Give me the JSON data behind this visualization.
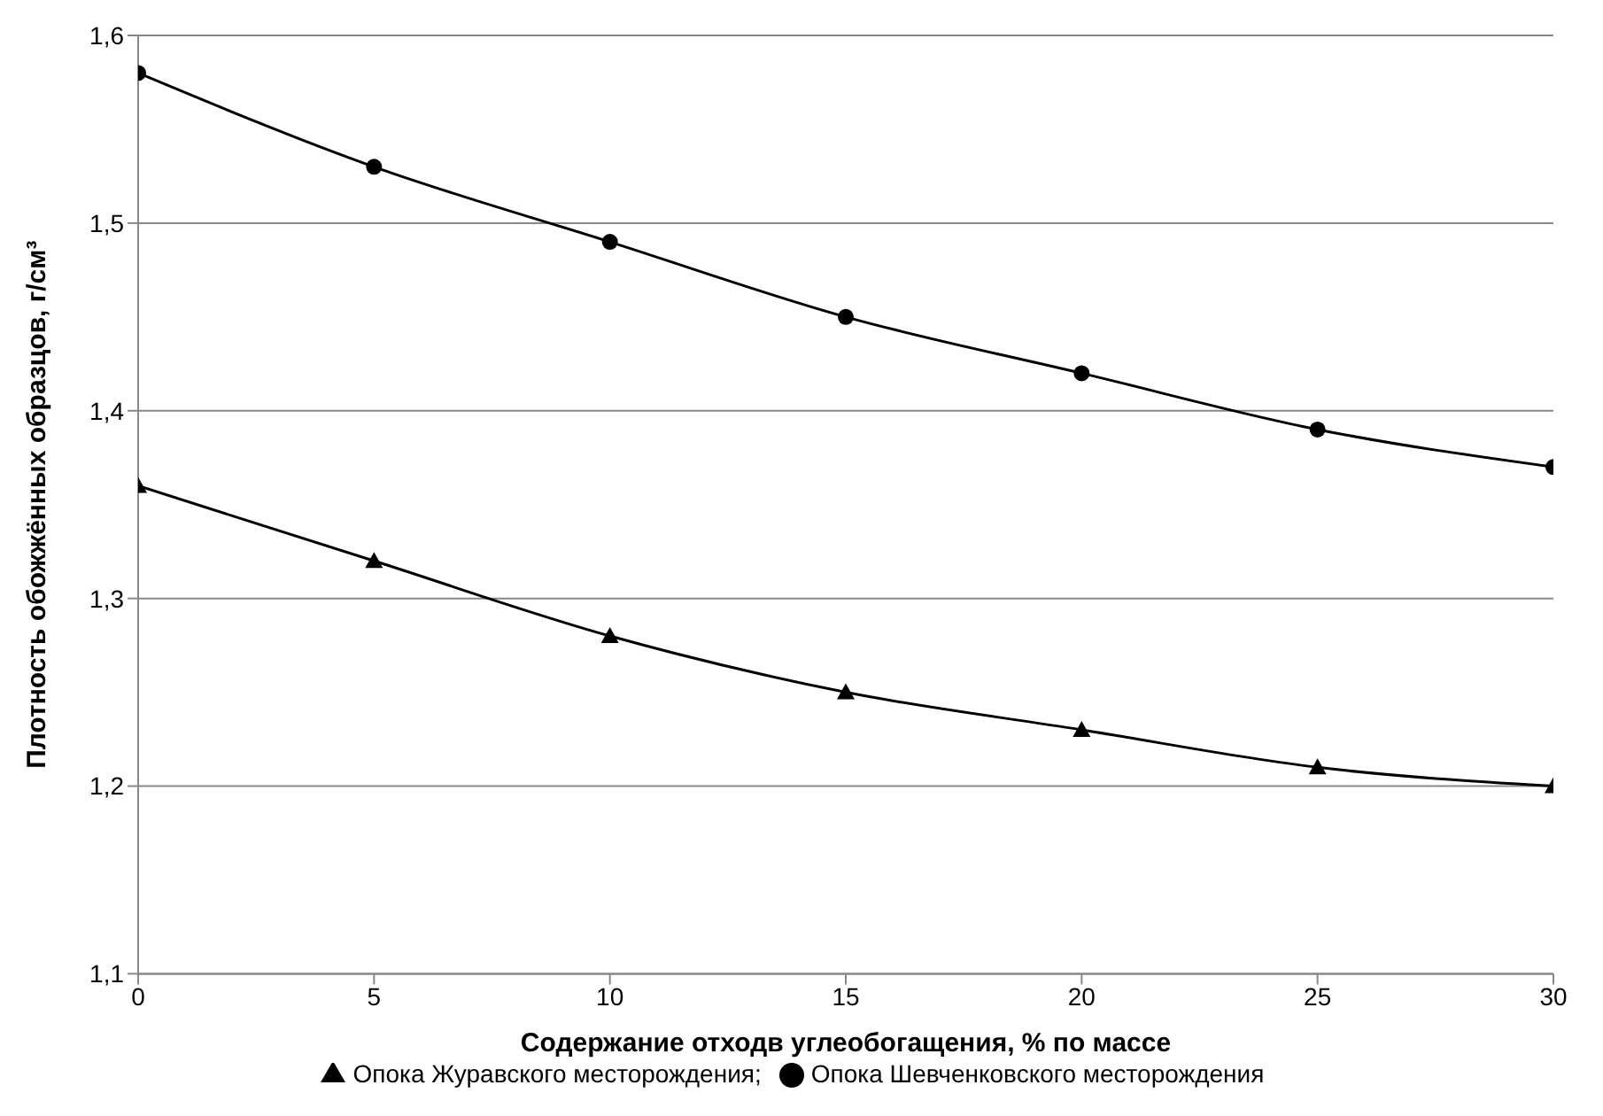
{
  "chart_data": {
    "type": "line",
    "xlabel": "Содержание отходв углеобогащения, % по массе",
    "ylabel": "Плотность обожжённых образцов, г/см³",
    "x": [
      0,
      5,
      10,
      15,
      20,
      25,
      30
    ],
    "series": [
      {
        "name": "Опока Журавского месторождения;",
        "color": "#000000",
        "marker": "triangle",
        "values": [
          1.36,
          1.32,
          1.28,
          1.25,
          1.23,
          1.21,
          1.2
        ]
      },
      {
        "name": "Опока Шевченковского месторождения",
        "color": "#000000",
        "marker": "circle",
        "values": [
          1.58,
          1.53,
          1.49,
          1.45,
          1.42,
          1.39,
          1.37
        ]
      }
    ],
    "xlim": [
      0,
      30
    ],
    "xticks": [
      0,
      5,
      10,
      15,
      20,
      25,
      30
    ],
    "ylim": [
      1.1,
      1.6
    ],
    "yticks": [
      {
        "value": 1.1,
        "label": "1,1"
      },
      {
        "value": 1.2,
        "label": "1,2"
      },
      {
        "value": 1.3,
        "label": "1,3"
      },
      {
        "value": 1.4,
        "label": "1,4"
      },
      {
        "value": 1.5,
        "label": "1,5"
      },
      {
        "value": 1.6,
        "label": "1,6"
      }
    ],
    "grid": "y",
    "legend": "bottom",
    "line_style": "solid"
  }
}
